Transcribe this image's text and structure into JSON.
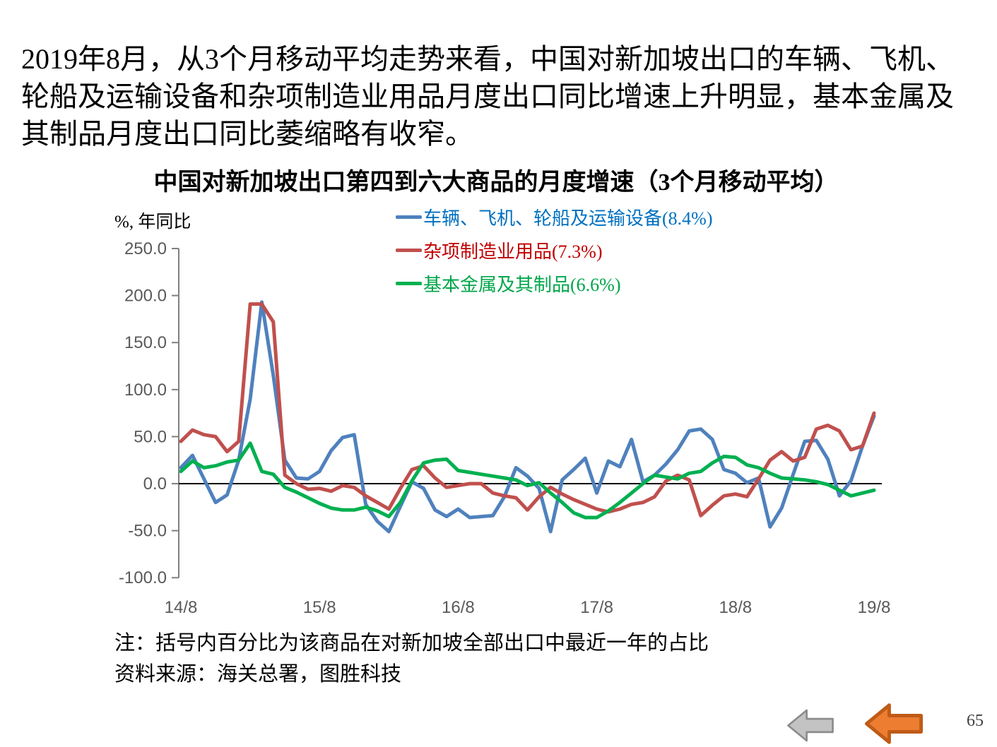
{
  "page": {
    "intro_text": "2019年8月，从3个月移动平均走势来看，中国对新加坡出口的车辆、飞机、轮船及运输设备和杂项制造业用品月度出口同比增速上升明显，基本金属及其制品月度出口同比萎缩略有收窄。",
    "page_number": "65"
  },
  "chart": {
    "title": "中国对新加坡出口第四到六大商品的月度增速（3个月移动平均）",
    "y_axis_title": "%, 年同比",
    "legend": [
      {
        "label": "车辆、飞机、轮船及运输设备(8.4%)",
        "line_color": "#4F81BD",
        "text_color": "#0070C0"
      },
      {
        "label": "杂项制造业用品(7.3%)",
        "line_color": "#C0504D",
        "text_color": "#C00000"
      },
      {
        "label": "基本金属及其制品(6.6%)",
        "line_color": "#00B050",
        "text_color": "#00A64A"
      }
    ]
  },
  "chart_data": {
    "type": "line",
    "title": "中国对新加坡出口第四到六大商品的月度增速（3个月移动平均）",
    "ylabel": "%, 年同比",
    "ylim": [
      -100,
      250
    ],
    "y_ticks": [
      250,
      200,
      150,
      100,
      50,
      0,
      -50,
      -100
    ],
    "grid": "zero-line-only",
    "legend_position": "top",
    "n_points": 61,
    "x_tick_labels": [
      "14/8",
      "15/8",
      "16/8",
      "17/8",
      "18/8",
      "19/8"
    ],
    "x_tick_positions": [
      0,
      12,
      24,
      36,
      48,
      60
    ],
    "series": [
      {
        "name": "车辆、飞机、轮船及运输设备(8.4%)",
        "color": "#4F81BD",
        "values": [
          17,
          30,
          5,
          -20,
          -12,
          25,
          90,
          193,
          115,
          25,
          6,
          5,
          13,
          35,
          49,
          52,
          -22,
          -40,
          -51,
          -24,
          2,
          -5,
          -28,
          -35,
          -27,
          -36,
          -35,
          -34,
          -14,
          17,
          8,
          -5,
          -51,
          4,
          15,
          27,
          -10,
          24,
          18,
          47,
          2,
          9,
          21,
          36,
          56,
          58,
          47,
          15,
          11,
          1,
          6,
          -46,
          -26,
          10,
          45,
          46,
          26,
          -13,
          3,
          40,
          72
        ]
      },
      {
        "name": "杂项制造业用品(7.3%)",
        "color": "#C0504D",
        "values": [
          45,
          57,
          52,
          50,
          34,
          45,
          191,
          191,
          172,
          9,
          0,
          -6,
          -5,
          -8,
          -2,
          -4,
          -13,
          -20,
          -27,
          -5,
          15,
          19,
          6,
          -4,
          -2,
          0,
          0,
          -10,
          -13,
          -15,
          -28,
          -14,
          -4,
          -11,
          -17,
          -22,
          -27,
          -30,
          -27,
          -22,
          -20,
          -14,
          3,
          9,
          4,
          -34,
          -23,
          -13,
          -11,
          -14,
          5,
          25,
          34,
          24,
          28,
          58,
          62,
          56,
          36,
          40,
          75
        ]
      },
      {
        "name": "基本金属及其制品(6.6%)",
        "color": "#00B050",
        "values": [
          13,
          24,
          17,
          19,
          23,
          25,
          43,
          13,
          10,
          -4,
          -9,
          -15,
          -21,
          -26,
          -28,
          -28,
          -25,
          -29,
          -35,
          -20,
          3,
          22,
          25,
          26,
          14,
          12,
          10,
          8,
          6,
          4,
          -2,
          1,
          -10,
          -20,
          -31,
          -36,
          -36,
          -29,
          -20,
          -10,
          0,
          9,
          7,
          5,
          11,
          13,
          22,
          29,
          28,
          20,
          17,
          11,
          6,
          5,
          4,
          2,
          -1,
          -7,
          -13,
          -10,
          -7
        ]
      }
    ]
  },
  "notes": {
    "line1": "注：括号内百分比为该商品在对新加坡全部出口中最近一年的占比",
    "line2": "资料来源：海关总署，图胜科技"
  },
  "nav": {
    "gray_arrow": {
      "fill": "#C3C3C3",
      "stroke": "#8C8C8C"
    },
    "orange_arrow": {
      "fill": "#ED7D31",
      "stroke": "#BF5B17"
    }
  }
}
